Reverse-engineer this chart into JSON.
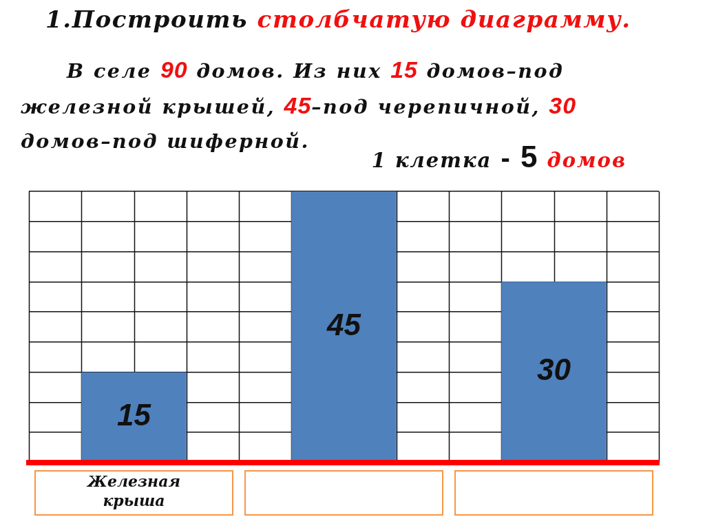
{
  "chart_data": {
    "type": "bar",
    "title": "1.Построить столбчатую диаграмму.",
    "subtitle": "В селе 90 домов. Из них 15 домов–под железной крышей, 45–под черепичной, 30 домов–под шиферной.",
    "annotations": [
      "1 клетка - 5 домов"
    ],
    "categories": [
      "Железная крыша",
      null,
      null
    ],
    "values": [
      15,
      45,
      30
    ],
    "color": "#4f81bd",
    "ylim": [
      0,
      45
    ],
    "grid": true,
    "tick_labels": "x",
    "data_labels": true
  }
}
